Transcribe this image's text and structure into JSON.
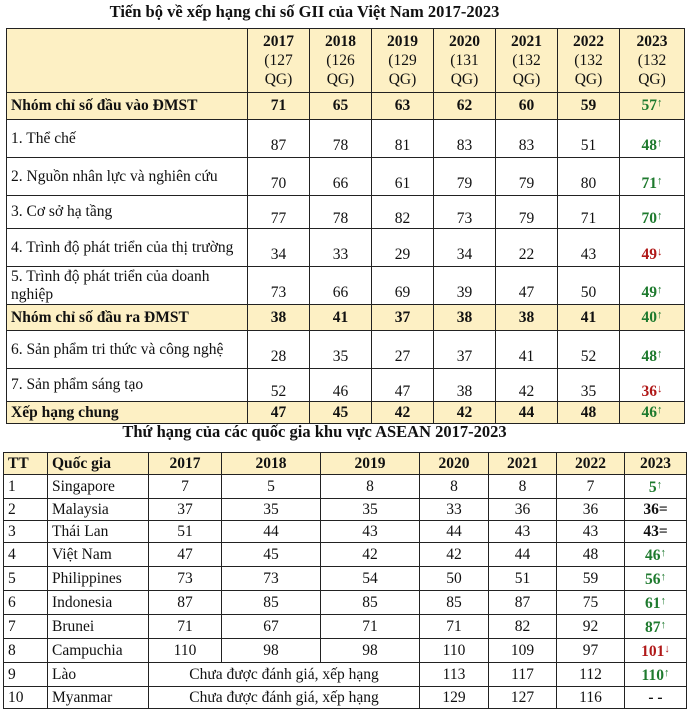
{
  "table1": {
    "title": "Tiến bộ về xếp hạng chỉ số GII của Việt Nam 2017-2023",
    "headers": [
      {
        "year": "2017",
        "count": "(127",
        "unit": "QG)"
      },
      {
        "year": "2018",
        "count": "(126",
        "unit": "QG)"
      },
      {
        "year": "2019",
        "count": "(129",
        "unit": "QG)"
      },
      {
        "year": "2020",
        "count": "(131",
        "unit": "QG)"
      },
      {
        "year": "2021",
        "count": "(132",
        "unit": "QG)"
      },
      {
        "year": "2022",
        "count": "(132",
        "unit": "QG)"
      },
      {
        "year": "2023",
        "count": "(132",
        "unit": "QG)"
      }
    ],
    "rows": [
      {
        "label": "Nhóm chỉ số đầu vào ĐMST",
        "values": [
          "71",
          "65",
          "63",
          "62",
          "60",
          "59"
        ],
        "v2023": "57",
        "trend": "up",
        "highlight": true
      },
      {
        "label": "1. Thể chế",
        "values": [
          "87",
          "78",
          "81",
          "83",
          "83",
          "51"
        ],
        "v2023": "48",
        "trend": "up",
        "highlight": false
      },
      {
        "label": "2. Nguồn nhân lực và nghiên cứu",
        "values": [
          "70",
          "66",
          "61",
          "79",
          "79",
          "80"
        ],
        "v2023": "71",
        "trend": "up",
        "highlight": false
      },
      {
        "label": "3. Cơ sở hạ tầng",
        "values": [
          "77",
          "78",
          "82",
          "73",
          "79",
          "71"
        ],
        "v2023": "70",
        "trend": "up",
        "highlight": false
      },
      {
        "label": "4. Trình độ phát triển của thị trường",
        "values": [
          "34",
          "33",
          "29",
          "34",
          "22",
          "43"
        ],
        "v2023": "49",
        "trend": "down",
        "highlight": false
      },
      {
        "label": "5. Trình độ phát triển của doanh nghiệp",
        "values": [
          "73",
          "66",
          "69",
          "39",
          "47",
          "50"
        ],
        "v2023": "49",
        "trend": "up",
        "highlight": false
      },
      {
        "label": "Nhóm chỉ số đầu ra ĐMST",
        "values": [
          "38",
          "41",
          "37",
          "38",
          "38",
          "41"
        ],
        "v2023": "40",
        "trend": "up",
        "highlight": true
      },
      {
        "label": "6. Sản phẩm tri thức và công nghệ",
        "values": [
          "28",
          "35",
          "27",
          "37",
          "41",
          "52"
        ],
        "v2023": "48",
        "trend": "up",
        "highlight": false
      },
      {
        "label": "7. Sản phẩm sáng tạo",
        "values": [
          "52",
          "46",
          "47",
          "38",
          "42",
          "35"
        ],
        "v2023": "36",
        "trend": "down",
        "highlight": false
      },
      {
        "label": "Xếp hạng chung",
        "values": [
          "47",
          "45",
          "42",
          "42",
          "44",
          "48"
        ],
        "v2023": "46",
        "trend": "up",
        "highlight": true
      }
    ]
  },
  "table2": {
    "title": "Thứ hạng của các quốc gia khu vực ASEAN 2017-2023",
    "headers": [
      "TT",
      "Quốc gia",
      "2017",
      "2018",
      "2019",
      "2020",
      "2021",
      "2022",
      "2023"
    ],
    "rows": [
      {
        "tt": "1",
        "country": "Singapore",
        "values": [
          "7",
          "5",
          "8",
          "8",
          "8",
          "7"
        ],
        "v2023": "5",
        "trend": "up"
      },
      {
        "tt": "2",
        "country": "Malaysia",
        "values": [
          "37",
          "35",
          "35",
          "33",
          "36",
          "36"
        ],
        "v2023": "36=",
        "trend": "eq"
      },
      {
        "tt": "3",
        "country": "Thái Lan",
        "values": [
          "51",
          "44",
          "43",
          "44",
          "43",
          "43"
        ],
        "v2023": "43=",
        "trend": "eq"
      },
      {
        "tt": "4",
        "country": "Việt Nam",
        "values": [
          "47",
          "45",
          "42",
          "42",
          "44",
          "48"
        ],
        "v2023": "46",
        "trend": "up"
      },
      {
        "tt": "5",
        "country": "Philippines",
        "values": [
          "73",
          "73",
          "54",
          "50",
          "51",
          "59"
        ],
        "v2023": "56",
        "trend": "up"
      },
      {
        "tt": "6",
        "country": "Indonesia",
        "values": [
          "87",
          "85",
          "85",
          "85",
          "87",
          "75"
        ],
        "v2023": "61",
        "trend": "up"
      },
      {
        "tt": "7",
        "country": "Brunei",
        "values": [
          "71",
          "67",
          "71",
          "71",
          "82",
          "92"
        ],
        "v2023": "87",
        "trend": "up"
      },
      {
        "tt": "8",
        "country": "Campuchia",
        "values": [
          "110",
          "98",
          "98",
          "110",
          "109",
          "97"
        ],
        "v2023": "101",
        "trend": "down"
      },
      {
        "tt": "9",
        "country": "Lào",
        "merged": "Chưa được đánh giá, xếp hạng",
        "values": [
          "113",
          "117",
          "112"
        ],
        "v2023": "110",
        "trend": "up"
      },
      {
        "tt": "10",
        "country": "Myanmar",
        "merged": "Chưa được đánh giá, xếp hạng",
        "values": [
          "129",
          "127",
          "116"
        ],
        "v2023": "- -",
        "trend": "none"
      }
    ]
  },
  "colors": {
    "header_bg": "#fdf0c4",
    "up": "#1e7a2e",
    "down": "#b01818"
  },
  "arrows": {
    "up": "↑",
    "down": "↓"
  }
}
